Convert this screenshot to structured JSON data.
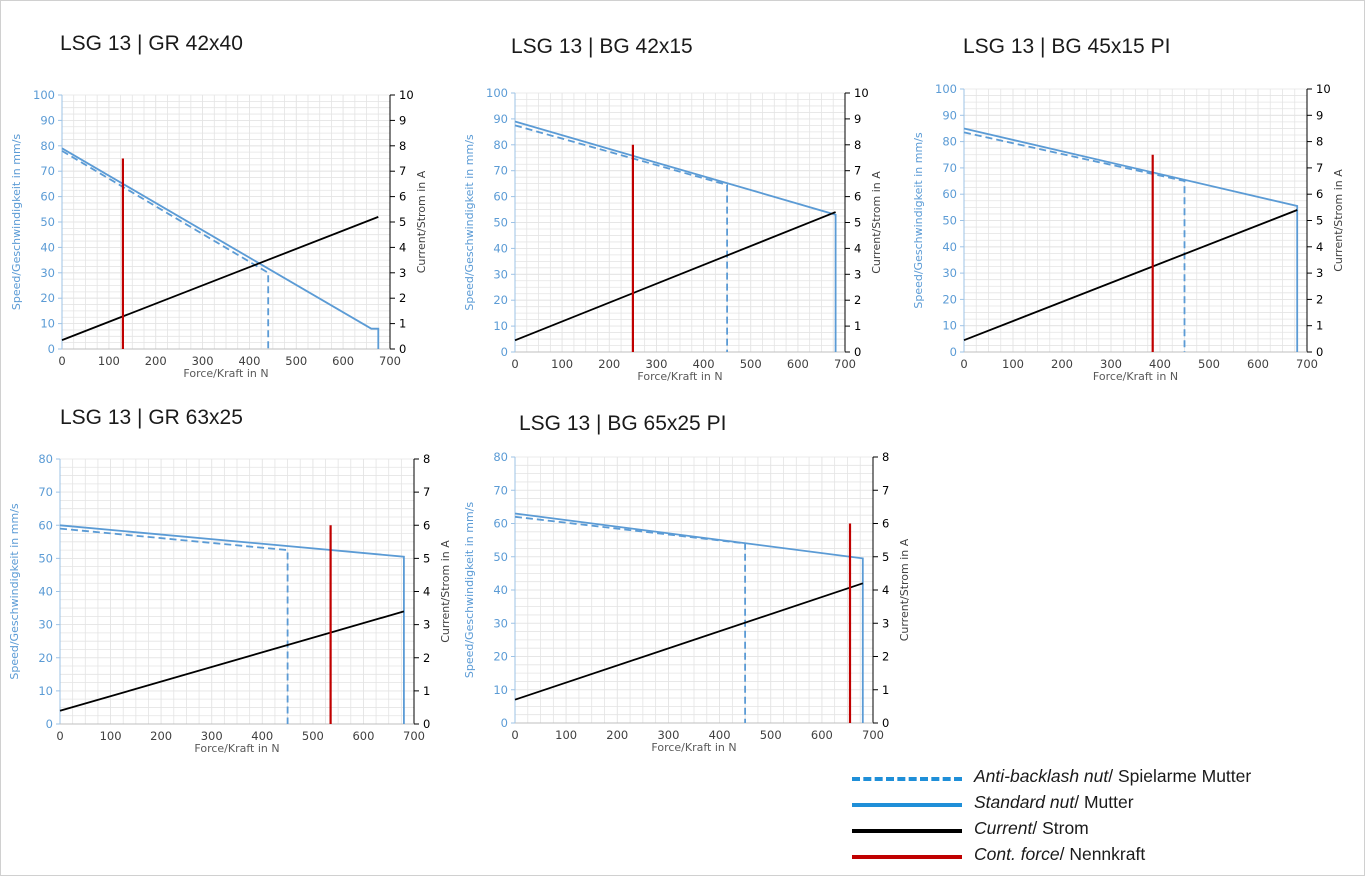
{
  "colors": {
    "standard": "#5b9bd5",
    "current": "#000000",
    "cont_force": "#c00000",
    "left_axis_text": "#5b9bd5",
    "right_axis_text": "#404040",
    "grid": "#e4e4e4",
    "legend_dashed": "#1f8fd8",
    "legend_solid": "#1f8fd8"
  },
  "chart_data": [
    {
      "type": "line",
      "title": "LSG 13 | GR 42x40",
      "xlabel": "Force/Kraft in N",
      "ylabel": "Speed/Geschwindigkeit in mm/s",
      "y2label": "Current/Strom in A",
      "xlim": [
        0,
        700
      ],
      "ylim": [
        0,
        100
      ],
      "y2lim": [
        0,
        10
      ],
      "x_ticks": [
        0,
        100,
        200,
        300,
        400,
        500,
        600,
        700
      ],
      "y_ticks": [
        0,
        10,
        20,
        30,
        40,
        50,
        60,
        70,
        80,
        90,
        100
      ],
      "y2_ticks": [
        0,
        1,
        2,
        3,
        4,
        5,
        6,
        7,
        8,
        9,
        10
      ],
      "grid": true,
      "series": [
        {
          "name": "Standard nut/ Mutter",
          "axis": "left",
          "style": "solid",
          "x": [
            0,
            660,
            675,
            675
          ],
          "y": [
            79,
            8,
            8,
            0
          ]
        },
        {
          "name": "Anti-backlash nut/ Spielarme Mutter",
          "axis": "left",
          "style": "dashed",
          "x": [
            0,
            440,
            440
          ],
          "y": [
            78,
            30,
            0
          ]
        },
        {
          "name": "Current/ Strom",
          "axis": "right",
          "style": "solid",
          "x": [
            0,
            675
          ],
          "y": [
            0.35,
            5.2
          ]
        },
        {
          "name": "Cont. force/ Nennkraft",
          "axis": "left",
          "style": "solid",
          "x": [
            130,
            130
          ],
          "y": [
            0,
            75
          ]
        }
      ]
    },
    {
      "type": "line",
      "title": "LSG 13 | BG 42x15",
      "xlabel": "Force/Kraft in N",
      "ylabel": "Speed/Geschwindigkeit in mm/s",
      "y2label": "Current/Strom in A",
      "xlim": [
        0,
        700
      ],
      "ylim": [
        0,
        100
      ],
      "y2lim": [
        0,
        10
      ],
      "x_ticks": [
        0,
        100,
        200,
        300,
        400,
        500,
        600,
        700
      ],
      "y_ticks": [
        0,
        10,
        20,
        30,
        40,
        50,
        60,
        70,
        80,
        90,
        100
      ],
      "y2_ticks": [
        0,
        1,
        2,
        3,
        4,
        5,
        6,
        7,
        8,
        9,
        10
      ],
      "grid": true,
      "series": [
        {
          "name": "Standard nut/ Mutter",
          "axis": "left",
          "style": "solid",
          "x": [
            0,
            680,
            680
          ],
          "y": [
            89,
            53,
            0
          ]
        },
        {
          "name": "Anti-backlash nut/ Spielarme Mutter",
          "axis": "left",
          "style": "dashed",
          "x": [
            0,
            450,
            450
          ],
          "y": [
            87.5,
            64.5,
            0
          ]
        },
        {
          "name": "Current/ Strom",
          "axis": "right",
          "style": "solid",
          "x": [
            0,
            680
          ],
          "y": [
            0.45,
            5.4
          ]
        },
        {
          "name": "Cont. force/ Nennkraft",
          "axis": "left",
          "style": "solid",
          "x": [
            250,
            250
          ],
          "y": [
            0,
            80
          ]
        }
      ]
    },
    {
      "type": "line",
      "title": "LSG 13 | BG 45x15 PI",
      "xlabel": "Force/Kraft in N",
      "ylabel": "Speed/Geschwindigkeit in mm/s",
      "y2label": "Current/Strom in A",
      "xlim": [
        0,
        700
      ],
      "ylim": [
        0,
        100
      ],
      "y2lim": [
        0,
        10
      ],
      "x_ticks": [
        0,
        100,
        200,
        300,
        400,
        500,
        600,
        700
      ],
      "y_ticks": [
        0,
        10,
        20,
        30,
        40,
        50,
        60,
        70,
        80,
        90,
        100
      ],
      "y2_ticks": [
        0,
        1,
        2,
        3,
        4,
        5,
        6,
        7,
        8,
        9,
        10
      ],
      "grid": true,
      "series": [
        {
          "name": "Standard nut/ Mutter",
          "axis": "left",
          "style": "solid",
          "x": [
            0,
            680,
            680
          ],
          "y": [
            85,
            55.5,
            0
          ]
        },
        {
          "name": "Anti-backlash nut/ Spielarme Mutter",
          "axis": "left",
          "style": "dashed",
          "x": [
            0,
            450,
            450
          ],
          "y": [
            83.5,
            65,
            0
          ]
        },
        {
          "name": "Current/ Strom",
          "axis": "right",
          "style": "solid",
          "x": [
            0,
            680
          ],
          "y": [
            0.45,
            5.4
          ]
        },
        {
          "name": "Cont. force/ Nennkraft",
          "axis": "left",
          "style": "solid",
          "x": [
            385,
            385
          ],
          "y": [
            0,
            75
          ]
        }
      ]
    },
    {
      "type": "line",
      "title": "LSG 13 | GR 63x25",
      "xlabel": "Force/Kraft in N",
      "ylabel": "Speed/Geschwindigkeit in mm/s",
      "y2label": "Current/Strom in A",
      "xlim": [
        0,
        700
      ],
      "ylim": [
        0,
        80
      ],
      "y2lim": [
        0,
        8
      ],
      "x_ticks": [
        0,
        100,
        200,
        300,
        400,
        500,
        600,
        700
      ],
      "y_ticks": [
        0,
        10,
        20,
        30,
        40,
        50,
        60,
        70,
        80
      ],
      "y2_ticks": [
        0,
        1,
        2,
        3,
        4,
        5,
        6,
        7,
        8
      ],
      "grid": true,
      "series": [
        {
          "name": "Standard nut/ Mutter",
          "axis": "left",
          "style": "solid",
          "x": [
            0,
            680,
            680
          ],
          "y": [
            60,
            50.5,
            0
          ]
        },
        {
          "name": "Anti-backlash nut/ Spielarme Mutter",
          "axis": "left",
          "style": "dashed",
          "x": [
            0,
            450,
            450
          ],
          "y": [
            59,
            52.5,
            0
          ]
        },
        {
          "name": "Current/ Strom",
          "axis": "right",
          "style": "solid",
          "x": [
            0,
            680
          ],
          "y": [
            0.4,
            3.4
          ]
        },
        {
          "name": "Cont. force/ Nennkraft",
          "axis": "left",
          "style": "solid",
          "x": [
            535,
            535
          ],
          "y": [
            0,
            60
          ]
        }
      ]
    },
    {
      "type": "line",
      "title": "LSG 13 | BG 65x25 PI",
      "xlabel": "Force/Kraft in N",
      "ylabel": "Speed/Geschwindigkeit in mm/s",
      "y2label": "Current/Strom in A",
      "xlim": [
        0,
        700
      ],
      "ylim": [
        0,
        80
      ],
      "y2lim": [
        0,
        8
      ],
      "x_ticks": [
        0,
        100,
        200,
        300,
        400,
        500,
        600,
        700
      ],
      "y_ticks": [
        0,
        10,
        20,
        30,
        40,
        50,
        60,
        70,
        80
      ],
      "y2_ticks": [
        0,
        1,
        2,
        3,
        4,
        5,
        6,
        7,
        8
      ],
      "grid": true,
      "series": [
        {
          "name": "Standard nut/ Mutter",
          "axis": "left",
          "style": "solid",
          "x": [
            0,
            680,
            680
          ],
          "y": [
            63,
            49.5,
            0
          ]
        },
        {
          "name": "Anti-backlash nut/ Spielarme Mutter",
          "axis": "left",
          "style": "dashed",
          "x": [
            0,
            450,
            450
          ],
          "y": [
            62,
            54,
            0
          ]
        },
        {
          "name": "Current/ Strom",
          "axis": "right",
          "style": "solid",
          "x": [
            0,
            680
          ],
          "y": [
            0.7,
            4.2
          ]
        },
        {
          "name": "Cont. force/ Nennkraft",
          "axis": "left",
          "style": "solid",
          "x": [
            655,
            655
          ],
          "y": [
            0,
            60
          ]
        }
      ]
    }
  ],
  "legend": [
    {
      "italic": "Anti-backlash nut",
      "rest": "/ Spielarme Mutter",
      "style": "dashed",
      "color": "#1f8fd8"
    },
    {
      "italic": "Standard nut",
      "rest": "/ Mutter",
      "style": "solid",
      "color": "#1f8fd8"
    },
    {
      "italic": "Current",
      "rest": "/ Strom",
      "style": "solid",
      "color": "#000000"
    },
    {
      "italic": "Cont. force",
      "rest": "/ Nennkraft",
      "style": "solid",
      "color": "#c00000"
    }
  ]
}
